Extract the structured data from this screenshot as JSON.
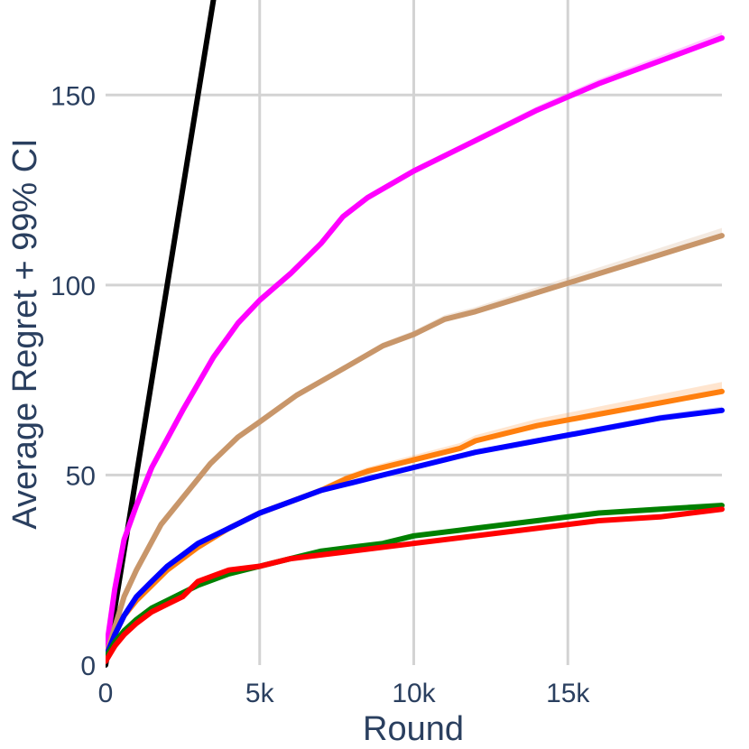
{
  "chart_data": {
    "type": "line",
    "title": "",
    "xlabel": "Round",
    "ylabel": "Average Regret + 99% CI",
    "xlim": [
      0,
      20000
    ],
    "ylim": [
      0,
      175
    ],
    "x_ticks": [
      0,
      5000,
      10000,
      15000
    ],
    "x_tick_labels": [
      "0",
      "5k",
      "10k",
      "15k"
    ],
    "y_ticks": [
      0,
      50,
      100,
      150
    ],
    "y_tick_labels": [
      "0",
      "50",
      "100",
      "150"
    ],
    "grid": true,
    "legend": "none",
    "series": [
      {
        "color": "#000000",
        "band": 0,
        "x": [
          0,
          1000,
          2000,
          3000,
          3500
        ],
        "y": [
          0,
          50,
          100,
          150,
          175
        ]
      },
      {
        "color": "#ff00ff",
        "band": 1.5,
        "x": [
          0,
          300,
          600,
          1000,
          1500,
          2500,
          3500,
          4300,
          5000,
          6000,
          7000,
          7700,
          8500,
          10000,
          12000,
          14000,
          16000,
          18000,
          20000
        ],
        "y": [
          3,
          20,
          33,
          42,
          52,
          67,
          81,
          90,
          96,
          103,
          111,
          118,
          123,
          130,
          138,
          146,
          153,
          159,
          165
        ]
      },
      {
        "color": "#c8966a",
        "band": 2,
        "x": [
          0,
          300,
          600,
          1000,
          1800,
          2500,
          3400,
          4300,
          5000,
          6200,
          7500,
          9000,
          10000,
          11000,
          12000,
          14000,
          16000,
          18000,
          20000
        ],
        "y": [
          2,
          10,
          18,
          25,
          37,
          44,
          53,
          60,
          64,
          71,
          77,
          84,
          87,
          91,
          93,
          98,
          103,
          108,
          113
        ]
      },
      {
        "color": "#ff7f0e",
        "band": 2.5,
        "x": [
          0,
          300,
          600,
          1000,
          1500,
          2000,
          3000,
          4000,
          5000,
          6000,
          7000,
          7800,
          8500,
          10000,
          11500,
          12000,
          14000,
          16000,
          18000,
          20000
        ],
        "y": [
          2,
          8,
          13,
          17,
          21,
          25,
          31,
          36,
          40,
          43,
          46,
          49,
          51,
          54,
          57,
          59,
          63,
          66,
          69,
          72
        ]
      },
      {
        "color": "#0000ff",
        "band": 1,
        "x": [
          0,
          300,
          600,
          1000,
          1500,
          2000,
          2500,
          3000,
          3500,
          4000,
          5000,
          6000,
          7000,
          8000,
          9000,
          10000,
          11000,
          12000,
          14000,
          16000,
          18000,
          20000
        ],
        "y": [
          2,
          8,
          13,
          18,
          22,
          26,
          29,
          32,
          34,
          36,
          40,
          43,
          46,
          48,
          50,
          52,
          54,
          56,
          59,
          62,
          65,
          67
        ]
      },
      {
        "color": "#008000",
        "band": 0.8,
        "x": [
          0,
          300,
          600,
          1000,
          1500,
          2000,
          2500,
          3000,
          4000,
          5000,
          6000,
          7000,
          8000,
          9000,
          10000,
          12000,
          14000,
          16000,
          18000,
          20000
        ],
        "y": [
          2,
          6,
          9,
          12,
          15,
          17,
          19,
          21,
          24,
          26,
          28,
          30,
          31,
          32,
          34,
          36,
          38,
          40,
          41,
          42
        ]
      },
      {
        "color": "#ff0000",
        "band": 0.8,
        "x": [
          0,
          300,
          600,
          1000,
          1500,
          2000,
          2500,
          3000,
          4000,
          5000,
          6000,
          7000,
          8000,
          9000,
          10000,
          12000,
          14000,
          16000,
          18000,
          20000
        ],
        "y": [
          1,
          5,
          8,
          11,
          14,
          16,
          18,
          22,
          25,
          26,
          28,
          29,
          30,
          31,
          32,
          34,
          36,
          38,
          39,
          41
        ]
      }
    ]
  }
}
